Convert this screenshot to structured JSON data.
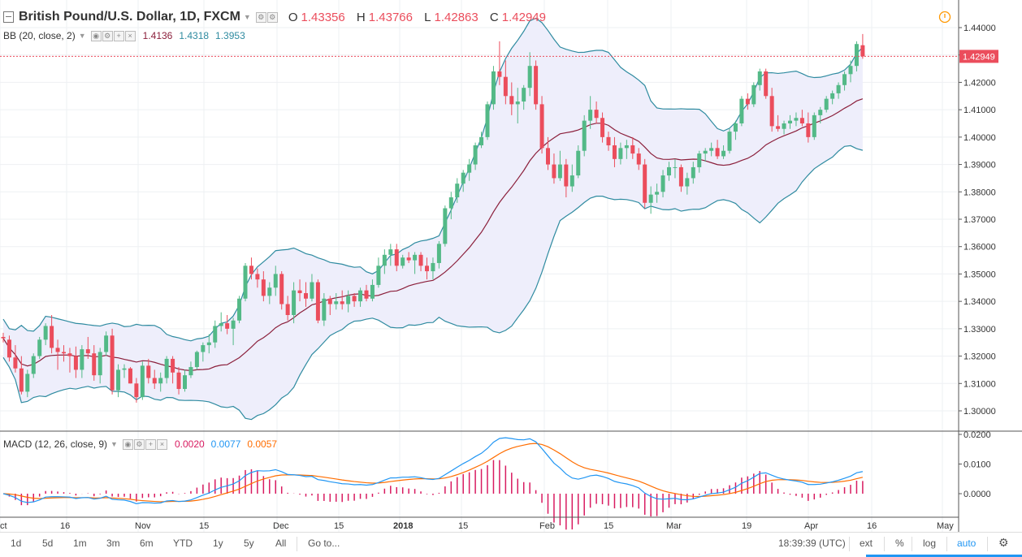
{
  "header": {
    "symbol_title": "British Pound/U.S. Dollar, 1D, FXCM",
    "open_label": "O",
    "open_value": "1.43356",
    "high_label": "H",
    "high_value": "1.43766",
    "low_label": "L",
    "low_value": "1.42863",
    "close_label": "C",
    "close_value": "1.42949"
  },
  "bb_legend": {
    "label": "BB (20, close, 2)",
    "basis": "1.4136",
    "upper": "1.4318",
    "lower": "1.3953"
  },
  "macd_legend": {
    "label": "MACD (12, 26, close, 9)",
    "hist": "0.0020",
    "macd": "0.0077",
    "signal": "0.0057"
  },
  "price_axis": {
    "ticks": [
      "1.44000",
      "1.43000",
      "1.42000",
      "1.41000",
      "1.40000",
      "1.39000",
      "1.38000",
      "1.37000",
      "1.36000",
      "1.35000",
      "1.34000",
      "1.33000",
      "1.32000",
      "1.31000",
      "1.30000"
    ],
    "last_price": "1.42949"
  },
  "macd_axis": {
    "ticks": [
      "0.0200",
      "0.0100",
      "0.0000"
    ]
  },
  "time_axis": {
    "labels": [
      "ct",
      "16",
      "Nov",
      "15",
      "Dec",
      "15",
      "2018",
      "15",
      "Feb",
      "15",
      "Mar",
      "19",
      "Apr",
      "16",
      "May"
    ]
  },
  "bottom_bar": {
    "ranges": [
      "1d",
      "5d",
      "1m",
      "3m",
      "6m",
      "YTD",
      "1y",
      "5y",
      "All"
    ],
    "goto": "Go to...",
    "clock": "18:39:39 (UTC)",
    "ext": "ext",
    "percent": "%",
    "log": "log",
    "auto": "auto"
  },
  "colors": {
    "up": "#53b987",
    "down": "#eb4d5c",
    "bb_band": "#2f8ba0",
    "bb_basis": "#8b1f3b",
    "bb_fill": "#eeeefb",
    "macd": "#2196f3",
    "signal": "#ff6d00",
    "hist": "#d81b60",
    "accent": "#2196f3",
    "alert": "#ff9800"
  },
  "chart_data": {
    "type": "candlestick",
    "series": [
      {
        "name": "GBP/USD",
        "ohlc": [
          [
            1.327,
            1.3285,
            1.325,
            1.3265
          ],
          [
            1.326,
            1.3275,
            1.318,
            1.3195
          ],
          [
            1.3195,
            1.324,
            1.314,
            1.3155
          ],
          [
            1.3155,
            1.32,
            1.306,
            1.307
          ],
          [
            1.307,
            1.315,
            1.305,
            1.3135
          ],
          [
            1.3135,
            1.321,
            1.312,
            1.32
          ],
          [
            1.32,
            1.327,
            1.319,
            1.326
          ],
          [
            1.326,
            1.332,
            1.324,
            1.331
          ],
          [
            1.331,
            1.335,
            1.321,
            1.323
          ],
          [
            1.323,
            1.326,
            1.315,
            1.3215
          ],
          [
            1.3215,
            1.324,
            1.318,
            1.321
          ],
          [
            1.321,
            1.323,
            1.314,
            1.32
          ],
          [
            1.32,
            1.3235,
            1.312,
            1.315
          ],
          [
            1.315,
            1.324,
            1.312,
            1.3225
          ],
          [
            1.3225,
            1.327,
            1.319,
            1.321
          ],
          [
            1.321,
            1.324,
            1.311,
            1.313
          ],
          [
            1.313,
            1.323,
            1.31,
            1.3215
          ],
          [
            1.3215,
            1.329,
            1.32,
            1.3275
          ],
          [
            1.3275,
            1.33,
            1.306,
            1.3075
          ],
          [
            1.3075,
            1.317,
            1.305,
            1.315
          ],
          [
            1.315,
            1.317,
            1.312,
            1.3155
          ],
          [
            1.3155,
            1.316,
            1.31,
            1.31
          ],
          [
            1.31,
            1.312,
            1.303,
            1.305
          ],
          [
            1.305,
            1.318,
            1.304,
            1.3165
          ],
          [
            1.3165,
            1.319,
            1.31,
            1.312
          ],
          [
            1.312,
            1.315,
            1.308,
            1.31
          ],
          [
            1.31,
            1.314,
            1.307,
            1.312
          ],
          [
            1.312,
            1.32,
            1.31,
            1.319
          ],
          [
            1.319,
            1.32,
            1.31,
            1.314
          ],
          [
            1.314,
            1.316,
            1.306,
            1.308
          ],
          [
            1.308,
            1.315,
            1.307,
            1.313
          ],
          [
            1.313,
            1.318,
            1.312,
            1.316
          ],
          [
            1.316,
            1.322,
            1.315,
            1.3215
          ],
          [
            1.3215,
            1.325,
            1.318,
            1.324
          ],
          [
            1.324,
            1.328,
            1.321,
            1.325
          ],
          [
            1.325,
            1.333,
            1.323,
            1.331
          ],
          [
            1.331,
            1.336,
            1.329,
            1.332
          ],
          [
            1.332,
            1.335,
            1.328,
            1.33
          ],
          [
            1.33,
            1.334,
            1.324,
            1.333
          ],
          [
            1.333,
            1.342,
            1.332,
            1.341
          ],
          [
            1.341,
            1.354,
            1.34,
            1.353
          ],
          [
            1.353,
            1.356,
            1.348,
            1.35
          ],
          [
            1.35,
            1.352,
            1.345,
            1.348
          ],
          [
            1.348,
            1.351,
            1.34,
            1.342
          ],
          [
            1.342,
            1.347,
            1.339,
            1.345
          ],
          [
            1.345,
            1.353,
            1.342,
            1.35
          ],
          [
            1.35,
            1.351,
            1.337,
            1.339
          ],
          [
            1.339,
            1.342,
            1.333,
            1.335
          ],
          [
            1.335,
            1.347,
            1.332,
            1.344
          ],
          [
            1.344,
            1.348,
            1.34,
            1.343
          ],
          [
            1.343,
            1.347,
            1.338,
            1.341
          ],
          [
            1.341,
            1.35,
            1.34,
            1.347
          ],
          [
            1.347,
            1.348,
            1.332,
            1.333
          ],
          [
            1.333,
            1.343,
            1.331,
            1.341
          ],
          [
            1.341,
            1.342,
            1.335,
            1.339
          ],
          [
            1.339,
            1.343,
            1.337,
            1.34
          ],
          [
            1.34,
            1.344,
            1.337,
            1.339
          ],
          [
            1.339,
            1.344,
            1.336,
            1.342
          ],
          [
            1.342,
            1.343,
            1.338,
            1.34
          ],
          [
            1.34,
            1.345,
            1.338,
            1.344
          ],
          [
            1.344,
            1.346,
            1.34,
            1.341
          ],
          [
            1.341,
            1.348,
            1.34,
            1.346
          ],
          [
            1.346,
            1.356,
            1.345,
            1.353
          ],
          [
            1.353,
            1.359,
            1.35,
            1.357
          ],
          [
            1.357,
            1.361,
            1.353,
            1.359
          ],
          [
            1.359,
            1.361,
            1.351,
            1.353
          ],
          [
            1.353,
            1.357,
            1.352,
            1.356
          ],
          [
            1.356,
            1.358,
            1.354,
            1.355
          ],
          [
            1.355,
            1.358,
            1.35,
            1.357
          ],
          [
            1.357,
            1.358,
            1.351,
            1.353
          ],
          [
            1.353,
            1.356,
            1.348,
            1.351
          ],
          [
            1.351,
            1.356,
            1.348,
            1.354
          ],
          [
            1.354,
            1.362,
            1.352,
            1.361
          ],
          [
            1.361,
            1.375,
            1.36,
            1.374
          ],
          [
            1.374,
            1.38,
            1.37,
            1.378
          ],
          [
            1.378,
            1.385,
            1.376,
            1.383
          ],
          [
            1.383,
            1.388,
            1.38,
            1.387
          ],
          [
            1.387,
            1.392,
            1.384,
            1.39
          ],
          [
            1.39,
            1.398,
            1.388,
            1.397
          ],
          [
            1.397,
            1.402,
            1.396,
            1.4
          ],
          [
            1.4,
            1.413,
            1.399,
            1.412
          ],
          [
            1.412,
            1.426,
            1.41,
            1.424
          ],
          [
            1.424,
            1.435,
            1.419,
            1.422
          ],
          [
            1.422,
            1.428,
            1.412,
            1.415
          ],
          [
            1.415,
            1.42,
            1.408,
            1.412
          ],
          [
            1.412,
            1.418,
            1.405,
            1.413
          ],
          [
            1.413,
            1.419,
            1.41,
            1.418
          ],
          [
            1.418,
            1.431,
            1.415,
            1.426
          ],
          [
            1.426,
            1.428,
            1.41,
            1.412
          ],
          [
            1.412,
            1.415,
            1.394,
            1.396
          ],
          [
            1.396,
            1.4,
            1.388,
            1.39
          ],
          [
            1.39,
            1.394,
            1.383,
            1.385
          ],
          [
            1.385,
            1.395,
            1.384,
            1.39
          ],
          [
            1.39,
            1.392,
            1.378,
            1.382
          ],
          [
            1.382,
            1.39,
            1.38,
            1.386
          ],
          [
            1.386,
            1.397,
            1.385,
            1.395
          ],
          [
            1.395,
            1.408,
            1.393,
            1.406
          ],
          [
            1.406,
            1.415,
            1.403,
            1.41
          ],
          [
            1.41,
            1.413,
            1.405,
            1.407
          ],
          [
            1.407,
            1.409,
            1.398,
            1.4
          ],
          [
            1.4,
            1.402,
            1.395,
            1.397
          ],
          [
            1.397,
            1.4,
            1.389,
            1.392
          ],
          [
            1.392,
            1.398,
            1.39,
            1.396
          ],
          [
            1.396,
            1.399,
            1.392,
            1.397
          ],
          [
            1.397,
            1.4,
            1.392,
            1.394
          ],
          [
            1.394,
            1.396,
            1.388,
            1.39
          ],
          [
            1.39,
            1.392,
            1.374,
            1.376
          ],
          [
            1.376,
            1.382,
            1.372,
            1.379
          ],
          [
            1.379,
            1.383,
            1.376,
            1.38
          ],
          [
            1.38,
            1.388,
            1.378,
            1.386
          ],
          [
            1.386,
            1.391,
            1.384,
            1.389
          ],
          [
            1.389,
            1.392,
            1.385,
            1.389
          ],
          [
            1.389,
            1.39,
            1.38,
            1.382
          ],
          [
            1.382,
            1.387,
            1.379,
            1.385
          ],
          [
            1.385,
            1.391,
            1.383,
            1.389
          ],
          [
            1.389,
            1.395,
            1.387,
            1.394
          ],
          [
            1.394,
            1.396,
            1.391,
            1.395
          ],
          [
            1.395,
            1.398,
            1.393,
            1.396
          ],
          [
            1.396,
            1.399,
            1.392,
            1.393
          ],
          [
            1.393,
            1.397,
            1.392,
            1.395
          ],
          [
            1.395,
            1.403,
            1.394,
            1.402
          ],
          [
            1.402,
            1.406,
            1.399,
            1.405
          ],
          [
            1.405,
            1.415,
            1.404,
            1.414
          ],
          [
            1.414,
            1.416,
            1.41,
            1.412
          ],
          [
            1.412,
            1.42,
            1.411,
            1.419
          ],
          [
            1.419,
            1.425,
            1.417,
            1.424
          ],
          [
            1.424,
            1.425,
            1.414,
            1.415
          ],
          [
            1.415,
            1.418,
            1.402,
            1.404
          ],
          [
            1.404,
            1.408,
            1.402,
            1.403
          ],
          [
            1.403,
            1.406,
            1.401,
            1.405
          ],
          [
            1.405,
            1.408,
            1.403,
            1.406
          ],
          [
            1.406,
            1.409,
            1.404,
            1.407
          ],
          [
            1.407,
            1.41,
            1.404,
            1.405
          ],
          [
            1.405,
            1.409,
            1.398,
            1.4
          ],
          [
            1.4,
            1.409,
            1.399,
            1.408
          ],
          [
            1.408,
            1.411,
            1.405,
            1.41
          ],
          [
            1.41,
            1.415,
            1.409,
            1.414
          ],
          [
            1.414,
            1.417,
            1.412,
            1.416
          ],
          [
            1.416,
            1.42,
            1.414,
            1.419
          ],
          [
            1.419,
            1.424,
            1.417,
            1.423
          ],
          [
            1.423,
            1.428,
            1.42,
            1.426
          ],
          [
            1.426,
            1.435,
            1.424,
            1.434
          ],
          [
            1.43356,
            1.43766,
            1.42863,
            1.42949
          ]
        ]
      }
    ],
    "ylim": [
      1.295,
      1.443
    ],
    "macd": {
      "ylim": [
        -0.004,
        0.0205
      ]
    }
  }
}
